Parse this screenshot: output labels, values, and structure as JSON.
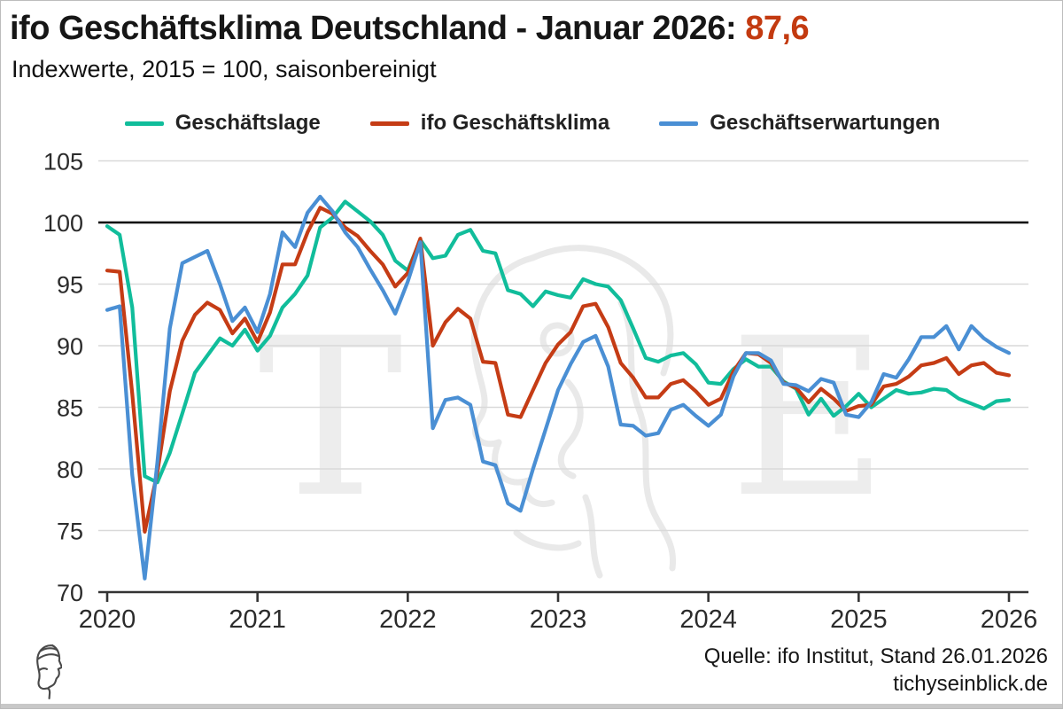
{
  "header": {
    "title_prefix": "ifo Geschäftsklima Deutschland - Januar 2026: ",
    "title_value": "87,6",
    "subtitle": "Indexwerte, 2015 = 100, saisonbereinigt"
  },
  "legend": [
    {
      "label": "Geschäftslage",
      "color": "#11bd9b"
    },
    {
      "label": "ifo Geschäftsklima",
      "color": "#c53c15"
    },
    {
      "label": "Geschäftserwartungen",
      "color": "#4a8fd4"
    }
  ],
  "footer": {
    "source": "Quelle: ifo Institut, Stand 26.01.2026",
    "site": "tichyseinblick.de"
  },
  "watermark": {
    "left_letter": "T",
    "right_letter": "E",
    "color": "#ededed"
  },
  "colors": {
    "reference_line": "#000000",
    "gridline": "#d9d9d9",
    "axis": "#333333",
    "tick_text": "#2b2b2b",
    "title_value": "#c33a10"
  },
  "chart_data": {
    "type": "line",
    "title": "ifo Geschäftsklima Deutschland - Januar 2026: 87,6",
    "subtitle": "Indexwerte, 2015 = 100, saisonbereinigt",
    "frequency": "monthly",
    "x_start": "2020-01",
    "x_end": "2026-01",
    "x_tick_labels": [
      "2020",
      "2021",
      "2022",
      "2023",
      "2024",
      "2025",
      "2026"
    ],
    "y_ticks": [
      70,
      75,
      80,
      85,
      90,
      95,
      100,
      105
    ],
    "ylim": [
      70,
      106
    ],
    "reference_line": 100,
    "legend_position": "top",
    "grid": true,
    "series": [
      {
        "name": "Geschäftslage",
        "color": "#11bd9b",
        "values": [
          99.7,
          99.0,
          93.1,
          79.4,
          78.9,
          81.3,
          84.5,
          87.8,
          89.2,
          90.6,
          90.0,
          91.3,
          89.6,
          90.8,
          93.1,
          94.2,
          95.7,
          99.6,
          100.4,
          101.7,
          100.9,
          100.1,
          99.0,
          96.9,
          96.1,
          98.6,
          97.1,
          97.3,
          99.0,
          99.4,
          97.7,
          97.5,
          94.5,
          94.2,
          93.2,
          94.4,
          94.1,
          93.9,
          95.4,
          95.0,
          94.8,
          93.7,
          91.4,
          89.0,
          88.7,
          89.2,
          89.4,
          88.5,
          87.0,
          86.9,
          88.1,
          88.9,
          88.3,
          88.3,
          87.1,
          86.5,
          84.4,
          85.7,
          84.3,
          85.1,
          86.1,
          85.0,
          85.7,
          86.4,
          86.1,
          86.2,
          86.5,
          86.4,
          85.7,
          85.3,
          84.9,
          85.5,
          85.6
        ]
      },
      {
        "name": "ifo Geschäftsklima",
        "color": "#c53c15",
        "values": [
          96.1,
          96.0,
          86.1,
          74.9,
          79.7,
          86.3,
          90.4,
          92.5,
          93.5,
          92.9,
          91.0,
          92.2,
          90.3,
          92.7,
          96.6,
          96.6,
          99.2,
          101.2,
          100.7,
          99.6,
          98.9,
          97.7,
          96.6,
          94.8,
          95.9,
          98.7,
          90.0,
          91.9,
          93.0,
          92.2,
          88.7,
          88.6,
          84.4,
          84.2,
          86.4,
          88.6,
          90.1,
          91.1,
          93.2,
          93.4,
          91.5,
          88.6,
          87.4,
          85.8,
          85.8,
          86.9,
          87.2,
          86.3,
          85.2,
          85.7,
          87.9,
          89.4,
          89.3,
          88.6,
          87.0,
          86.6,
          85.4,
          86.5,
          85.7,
          84.7,
          85.1,
          85.2,
          86.7,
          86.9,
          87.5,
          88.4,
          88.6,
          89.0,
          87.7,
          88.4,
          88.6,
          87.8,
          87.6
        ]
      },
      {
        "name": "Geschäftserwartungen",
        "color": "#4a8fd4",
        "values": [
          92.9,
          93.2,
          79.5,
          71.1,
          80.5,
          91.4,
          96.7,
          97.2,
          97.7,
          95.0,
          92.0,
          93.1,
          91.1,
          94.2,
          99.2,
          98.0,
          100.8,
          102.1,
          100.9,
          99.2,
          98.0,
          96.2,
          94.5,
          92.6,
          95.2,
          98.4,
          83.3,
          85.6,
          85.8,
          85.2,
          80.6,
          80.3,
          77.2,
          76.6,
          80.0,
          83.2,
          86.4,
          88.5,
          90.3,
          90.8,
          88.3,
          83.6,
          83.5,
          82.7,
          82.9,
          84.8,
          85.2,
          84.3,
          83.5,
          84.4,
          87.5,
          89.4,
          89.4,
          88.8,
          86.9,
          86.8,
          86.3,
          87.3,
          87.0,
          84.4,
          84.2,
          85.4,
          87.7,
          87.4,
          88.9,
          90.7,
          90.7,
          91.6,
          89.7,
          91.6,
          90.6,
          89.9,
          89.4
        ]
      }
    ]
  }
}
